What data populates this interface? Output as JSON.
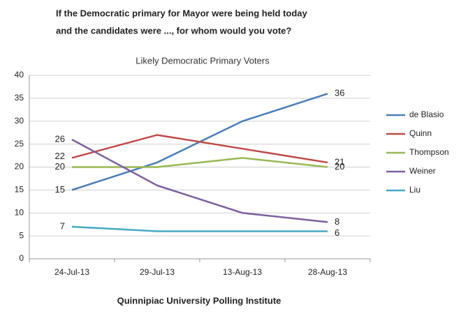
{
  "chart_data": {
    "type": "line",
    "title": [
      "If the Democratic primary for Mayor were being held today",
      "and the candidates were ..., for whom would you vote?"
    ],
    "subtitle": "Likely Democratic Primary Voters",
    "source": "Quinnipiac University Polling Institute",
    "categories": [
      "24-Jul-13",
      "29-Jul-13",
      "13-Aug-13",
      "28-Aug-13"
    ],
    "series": [
      {
        "name": "de Blasio",
        "color": "#4a7ebb",
        "values": [
          15,
          21,
          30,
          36
        ]
      },
      {
        "name": "Quinn",
        "color": "#be4b48",
        "values": [
          22,
          27,
          24,
          21
        ]
      },
      {
        "name": "Thompson",
        "color": "#98b954",
        "values": [
          20,
          20,
          22,
          20
        ]
      },
      {
        "name": "Weiner",
        "color": "#7d60a0",
        "values": [
          26,
          16,
          10,
          8
        ]
      },
      {
        "name": "Liu",
        "color": "#46aac5",
        "values": [
          7,
          6,
          6,
          6
        ]
      }
    ],
    "ylim": [
      0,
      40
    ],
    "yticks": [
      0,
      5,
      10,
      15,
      20,
      25,
      30,
      35,
      40
    ],
    "grid": true,
    "legend": "right",
    "data_labels": "first-last"
  }
}
